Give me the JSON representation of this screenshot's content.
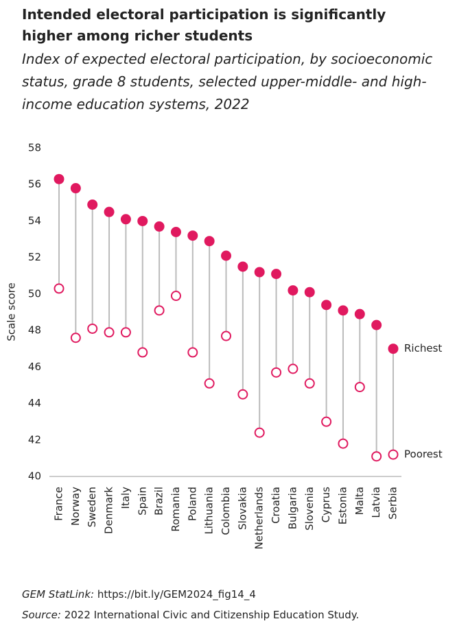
{
  "chart_data": {
    "type": "dumbbell",
    "title": "Intended electoral participation is significantly higher among richer students",
    "subtitle": "Index of expected electoral participation, by socioeconomic status, grade 8 students, selected upper-middle- and high-income education systems, 2022",
    "y_label": "Scale score",
    "categories": [
      "France",
      "Norway",
      "Sweden",
      "Denmark",
      "Italy",
      "Spain",
      "Brazil",
      "Romania",
      "Poland",
      "Lithuania",
      "Colombia",
      "Slovakia",
      "Netherlands",
      "Croatia",
      "Bulgaria",
      "Slovenia",
      "Cyprus",
      "Estonia",
      "Malta",
      "Latvia",
      "Serbia"
    ],
    "series": [
      {
        "name": "Richest",
        "color": "#e0195f",
        "filled": true,
        "values": [
          56.3,
          55.8,
          54.9,
          54.5,
          54.1,
          54.0,
          53.7,
          53.4,
          53.2,
          52.9,
          52.1,
          51.5,
          51.2,
          51.1,
          50.2,
          50.1,
          49.4,
          49.1,
          48.9,
          48.3,
          47.0
        ]
      },
      {
        "name": "Poorest",
        "color": "#e0195f",
        "filled": false,
        "values": [
          50.3,
          47.6,
          48.1,
          47.9,
          47.9,
          46.8,
          49.1,
          49.9,
          46.8,
          45.1,
          47.7,
          44.5,
          42.4,
          45.7,
          45.9,
          45.1,
          43.0,
          41.8,
          44.9,
          41.1,
          41.2
        ]
      }
    ],
    "ylim": [
      40,
      58
    ],
    "yticks": [
      40,
      42,
      44,
      46,
      48,
      50,
      52,
      54,
      56,
      58
    ],
    "line_color": "#bbbbbb"
  },
  "footer": {
    "statlink_label": "GEM StatLink:",
    "statlink_url": "https://bit.ly/GEM2024_fig14_4",
    "source_label": "Source:",
    "source_text": "2022 International Civic and Citizenship Education Study."
  }
}
